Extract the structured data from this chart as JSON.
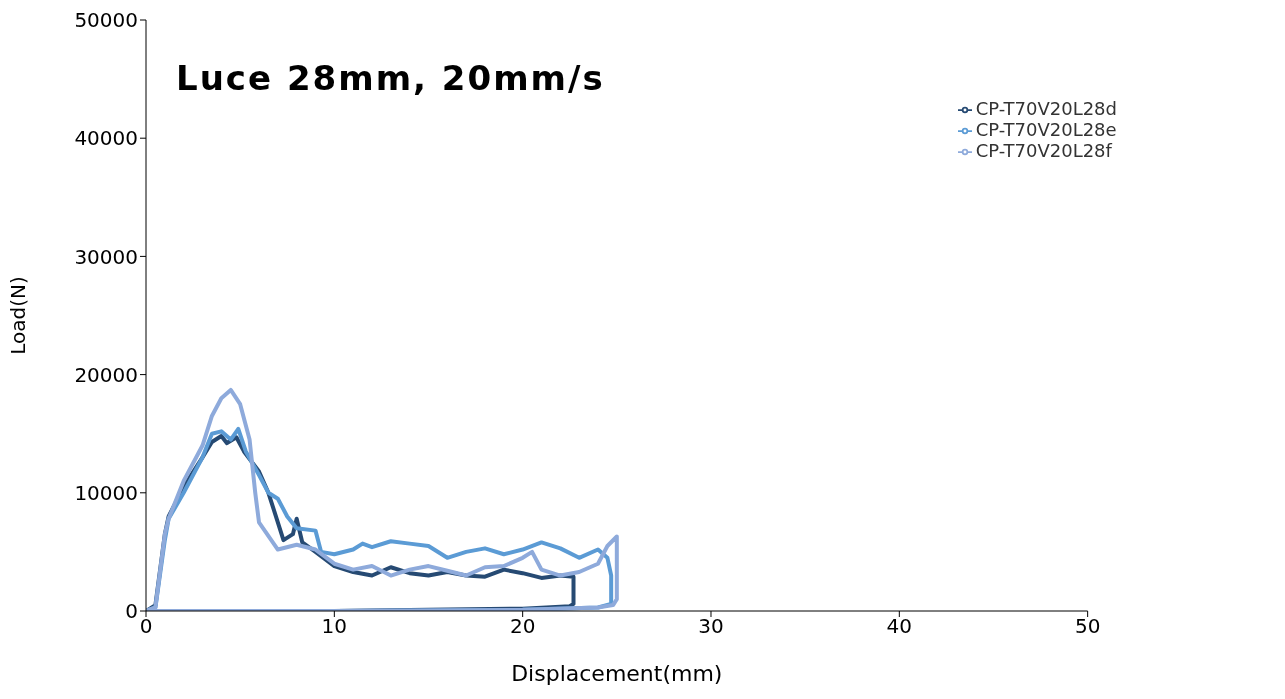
{
  "chart_data": {
    "type": "line",
    "title": "Luce 28mm, 20mm/s",
    "xlabel": "Displacement(mm)",
    "ylabel": "Load(N)",
    "xlim": [
      0,
      50
    ],
    "xticks": [
      0,
      10,
      20,
      30,
      40,
      50
    ],
    "ylim": [
      0,
      50000
    ],
    "yticks": [
      0,
      10000,
      20000,
      30000,
      40000,
      50000
    ],
    "grid": false,
    "legend": "top right",
    "marker": "none",
    "line_style": "solid",
    "series": [
      {
        "name": "CP-T70V20L28d",
        "color": "#264a73",
        "x": [
          0,
          0.5,
          1,
          1.2,
          2,
          3,
          3.5,
          4,
          4.3,
          4.8,
          5.2,
          6,
          6.5,
          7,
          7.3,
          7.8,
          8,
          8.3,
          9,
          10,
          11,
          12,
          13,
          14,
          15,
          16,
          17,
          18,
          19,
          20,
          21,
          22,
          22.7,
          22.7,
          22.5,
          20,
          15,
          10,
          5,
          0.5
        ],
        "values": [
          0,
          500,
          6500,
          8000,
          10500,
          13000,
          14300,
          14800,
          14200,
          14700,
          13500,
          11800,
          10000,
          7500,
          6000,
          6500,
          7800,
          5800,
          5000,
          3800,
          3300,
          3000,
          3700,
          3200,
          3000,
          3300,
          3000,
          2900,
          3500,
          3200,
          2800,
          3000,
          2900,
          600,
          400,
          200,
          100,
          0,
          0,
          0
        ]
      },
      {
        "name": "CP-T70V20L28e",
        "color": "#5b9bd5",
        "x": [
          0,
          0.5,
          1,
          1.2,
          2,
          3,
          3.5,
          4,
          4.5,
          4.9,
          5.3,
          6,
          6.5,
          7,
          7.5,
          8,
          9,
          9.3,
          10,
          11,
          11.5,
          12,
          13,
          14,
          15,
          16,
          17,
          18,
          19,
          20,
          21,
          22,
          23,
          24,
          24.5,
          24.7,
          24.7,
          24,
          20,
          10,
          0.5
        ],
        "values": [
          0,
          300,
          6000,
          7800,
          10000,
          13000,
          15000,
          15200,
          14500,
          15400,
          13500,
          11500,
          10000,
          9500,
          8000,
          7000,
          6800,
          5000,
          4800,
          5200,
          5700,
          5400,
          5900,
          5700,
          5500,
          4500,
          5000,
          5300,
          4800,
          5200,
          5800,
          5300,
          4500,
          5200,
          4500,
          3000,
          600,
          300,
          100,
          0,
          0
        ]
      },
      {
        "name": "CP-T70V20L28f",
        "color": "#8eaadb",
        "x": [
          0,
          0.5,
          1,
          1.2,
          2,
          3,
          3.5,
          4,
          4.5,
          5,
          5.5,
          5.8,
          6,
          7,
          8,
          9,
          10,
          11,
          12,
          13,
          14,
          15,
          16,
          17,
          18,
          19,
          20,
          20.5,
          21,
          22,
          23,
          24,
          24.5,
          25,
          25,
          24.8,
          24,
          20,
          10,
          0.5
        ],
        "values": [
          0,
          300,
          6500,
          7800,
          11000,
          14000,
          16500,
          18000,
          18700,
          17500,
          14500,
          10000,
          7500,
          5200,
          5600,
          5200,
          4000,
          3500,
          3800,
          3000,
          3500,
          3800,
          3400,
          3000,
          3700,
          3800,
          4500,
          5000,
          3500,
          3000,
          3300,
          4000,
          5500,
          6300,
          1000,
          500,
          300,
          100,
          0,
          0
        ]
      }
    ]
  }
}
